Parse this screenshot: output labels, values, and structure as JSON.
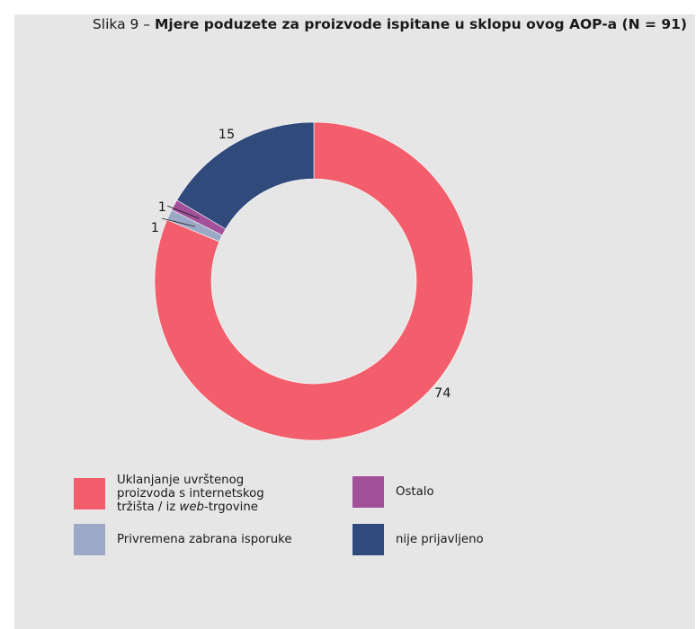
{
  "title": {
    "prefix": "Slika 9 – ",
    "main": "Mjere poduzete za proizvode ispitane u sklopu ovog AOP-a (N = 91)"
  },
  "chart_data": {
    "type": "pie",
    "hole": true,
    "categories": [
      "Uklanjanje uvrštenog proizvoda s internetskog tržišta / iz web-trgovine",
      "Privremena zabrana isporuke",
      "Ostalo",
      "nije prijavljeno"
    ],
    "values": [
      74,
      1,
      1,
      15
    ],
    "colors": [
      "#f25e6b",
      "#9ca9c6",
      "#a3509a",
      "#304a7c"
    ],
    "data_labels": [
      "74",
      "1",
      "1",
      "15"
    ],
    "legend_position": "bottom"
  },
  "legend": {
    "items": [
      {
        "lines": [
          "Uklanjanje uvrštenog",
          "proizvoda s internetskog"
        ],
        "line3_pre": "tržišta / iz ",
        "line3_em": "web",
        "line3_post": "-trgovine",
        "color": "#f25e6b"
      },
      {
        "label": "Ostalo",
        "color": "#a3509a"
      },
      {
        "label": "Privremena zabrana isporuke",
        "color": "#9ca9c6"
      },
      {
        "label": "nije prijavljeno",
        "color": "#304a7c"
      }
    ]
  }
}
